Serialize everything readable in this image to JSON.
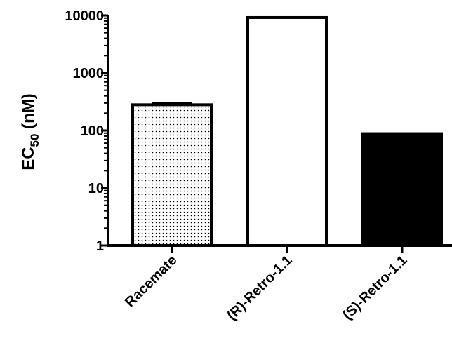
{
  "chart_data": {
    "type": "bar",
    "categories": [
      "Racemate",
      "(R)-Retro-1.1",
      "(S)-Retro-1.1"
    ],
    "values": [
      280,
      9200,
      88
    ],
    "errors": [
      18,
      0,
      0
    ],
    "bar_fills": [
      "dotted",
      "white",
      "black"
    ],
    "y_scale": "log",
    "ylim": [
      1,
      10000
    ],
    "yticks": [
      1,
      10,
      100,
      1000,
      10000
    ],
    "ytick_labels": [
      "1",
      "10",
      "100",
      "1000",
      "10000"
    ],
    "ylabel_main": "EC",
    "ylabel_sub": "50",
    "ylabel_unit": " (nM)",
    "xlabel": "",
    "title": "",
    "grid": false,
    "colors": {
      "axis": "#000000",
      "bar_edge": "#000000",
      "dot": "#000000"
    }
  }
}
